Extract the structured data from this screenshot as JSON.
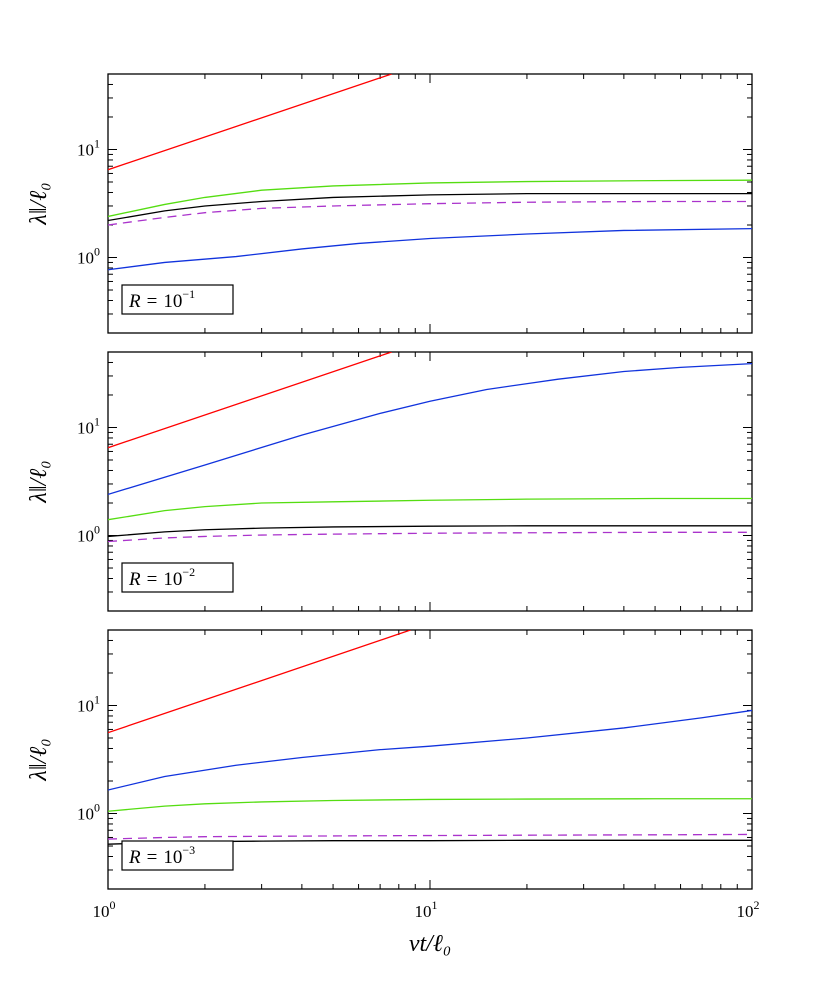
{
  "chart_data": {
    "type": "line",
    "shared_xaxis": {
      "scale": "log",
      "xlim": [
        1,
        100
      ],
      "major_ticks": [
        1,
        10,
        100
      ],
      "tick_labels": [
        {
          "base": "10",
          "exp": "0"
        },
        {
          "base": "10",
          "exp": "1"
        },
        {
          "base": "10",
          "exp": "2"
        }
      ],
      "xlabel": "vt/ℓ₀"
    },
    "panels": [
      {
        "label": "R = 10⁻¹",
        "label_parts": {
          "lhs": "R",
          "eq": "=",
          "base": "10",
          "exp": "−1"
        },
        "ylabel": "λ‖/ℓ₀",
        "yscale": "log",
        "ylim": [
          0.2,
          50
        ],
        "ytick_labels": [
          {
            "value": 1,
            "base": "10",
            "exp": "0"
          },
          {
            "value": 10,
            "base": "10",
            "exp": "1"
          }
        ],
        "series": [
          {
            "name": "red",
            "color": "#ff0000",
            "dash": "solid",
            "x": [
              1,
              7.6
            ],
            "y": [
              6.5,
              50
            ]
          },
          {
            "name": "green",
            "color": "#55dd11",
            "dash": "solid",
            "x": [
              1,
              1.5,
              2,
              3,
              5,
              10,
              20,
              50,
              100
            ],
            "y": [
              2.4,
              3.1,
              3.6,
              4.2,
              4.6,
              4.9,
              5.05,
              5.15,
              5.2
            ]
          },
          {
            "name": "black",
            "color": "#000000",
            "dash": "solid",
            "x": [
              1,
              1.5,
              2,
              3,
              5,
              10,
              20,
              50,
              100
            ],
            "y": [
              2.2,
              2.7,
              3.0,
              3.3,
              3.6,
              3.8,
              3.9,
              3.9,
              3.9
            ]
          },
          {
            "name": "purple",
            "color": "#aa33cc",
            "dash": "dashed",
            "x": [
              1,
              1.5,
              2,
              3,
              5,
              10,
              20,
              50,
              100
            ],
            "y": [
              2.0,
              2.35,
              2.6,
              2.85,
              3.0,
              3.15,
              3.25,
              3.3,
              3.3
            ]
          },
          {
            "name": "blue",
            "color": "#1133dd",
            "dash": "solid",
            "x": [
              1,
              1.5,
              2.5,
              4,
              6,
              10,
              20,
              40,
              100
            ],
            "y": [
              0.77,
              0.9,
              1.02,
              1.2,
              1.35,
              1.5,
              1.65,
              1.78,
              1.85
            ]
          }
        ]
      },
      {
        "label": "R = 10⁻²",
        "label_parts": {
          "lhs": "R",
          "eq": "=",
          "base": "10",
          "exp": "−2"
        },
        "ylabel": "λ‖/ℓ₀",
        "yscale": "log",
        "ylim": [
          0.2,
          50
        ],
        "ytick_labels": [
          {
            "value": 1,
            "base": "10",
            "exp": "0"
          },
          {
            "value": 10,
            "base": "10",
            "exp": "1"
          }
        ],
        "series": [
          {
            "name": "red",
            "color": "#ff0000",
            "dash": "solid",
            "x": [
              1,
              7.6
            ],
            "y": [
              6.5,
              50
            ]
          },
          {
            "name": "blue",
            "color": "#1133dd",
            "dash": "solid",
            "x": [
              1,
              2,
              4,
              7,
              10,
              15,
              25,
              40,
              60,
              100
            ],
            "y": [
              2.4,
              4.5,
              8.5,
              13.5,
              17.5,
              22.5,
              28,
              33,
              36,
              39
            ]
          },
          {
            "name": "green",
            "color": "#55dd11",
            "dash": "solid",
            "x": [
              1,
              1.5,
              2,
              3,
              5,
              10,
              20,
              50,
              100
            ],
            "y": [
              1.4,
              1.7,
              1.85,
              2.0,
              2.05,
              2.12,
              2.17,
              2.2,
              2.2
            ]
          },
          {
            "name": "black",
            "color": "#000000",
            "dash": "solid",
            "x": [
              1,
              1.5,
              2,
              3,
              5,
              10,
              20,
              50,
              100
            ],
            "y": [
              0.98,
              1.08,
              1.13,
              1.17,
              1.2,
              1.22,
              1.23,
              1.23,
              1.23
            ]
          },
          {
            "name": "purple",
            "color": "#aa33cc",
            "dash": "dashed",
            "x": [
              1,
              1.5,
              2,
              3,
              5,
              10,
              20,
              50,
              100
            ],
            "y": [
              0.88,
              0.95,
              0.98,
              1.01,
              1.03,
              1.05,
              1.06,
              1.07,
              1.07
            ]
          }
        ]
      },
      {
        "label": "R = 10⁻³",
        "label_parts": {
          "lhs": "R",
          "eq": "=",
          "base": "10",
          "exp": "−3"
        },
        "ylabel": "λ‖/ℓ₀",
        "yscale": "log",
        "ylim": [
          0.2,
          50
        ],
        "ytick_labels": [
          {
            "value": 1,
            "base": "10",
            "exp": "0"
          },
          {
            "value": 10,
            "base": "10",
            "exp": "1"
          }
        ],
        "series": [
          {
            "name": "red",
            "color": "#ff0000",
            "dash": "solid",
            "x": [
              1,
              8.7
            ],
            "y": [
              5.6,
              50
            ]
          },
          {
            "name": "blue",
            "color": "#1133dd",
            "dash": "solid",
            "x": [
              1,
              1.5,
              2.5,
              4,
              7,
              10,
              20,
              40,
              70,
              100
            ],
            "y": [
              1.65,
              2.2,
              2.8,
              3.3,
              3.9,
              4.2,
              5.0,
              6.2,
              7.7,
              9.0
            ]
          },
          {
            "name": "green",
            "color": "#55dd11",
            "dash": "solid",
            "x": [
              1,
              1.5,
              2,
              3,
              5,
              10,
              20,
              50,
              100
            ],
            "y": [
              1.05,
              1.17,
              1.23,
              1.28,
              1.32,
              1.35,
              1.36,
              1.37,
              1.37
            ]
          },
          {
            "name": "purple",
            "color": "#aa33cc",
            "dash": "dashed",
            "x": [
              1,
              1.5,
              2,
              3,
              5,
              10,
              20,
              50,
              100
            ],
            "y": [
              0.58,
              0.6,
              0.61,
              0.615,
              0.62,
              0.625,
              0.63,
              0.635,
              0.64
            ]
          },
          {
            "name": "black",
            "color": "#000000",
            "dash": "solid",
            "x": [
              1,
              1.5,
              2,
              3,
              5,
              10,
              20,
              50,
              100
            ],
            "y": [
              0.52,
              0.54,
              0.55,
              0.555,
              0.56,
              0.56,
              0.565,
              0.565,
              0.565
            ]
          }
        ]
      }
    ]
  }
}
